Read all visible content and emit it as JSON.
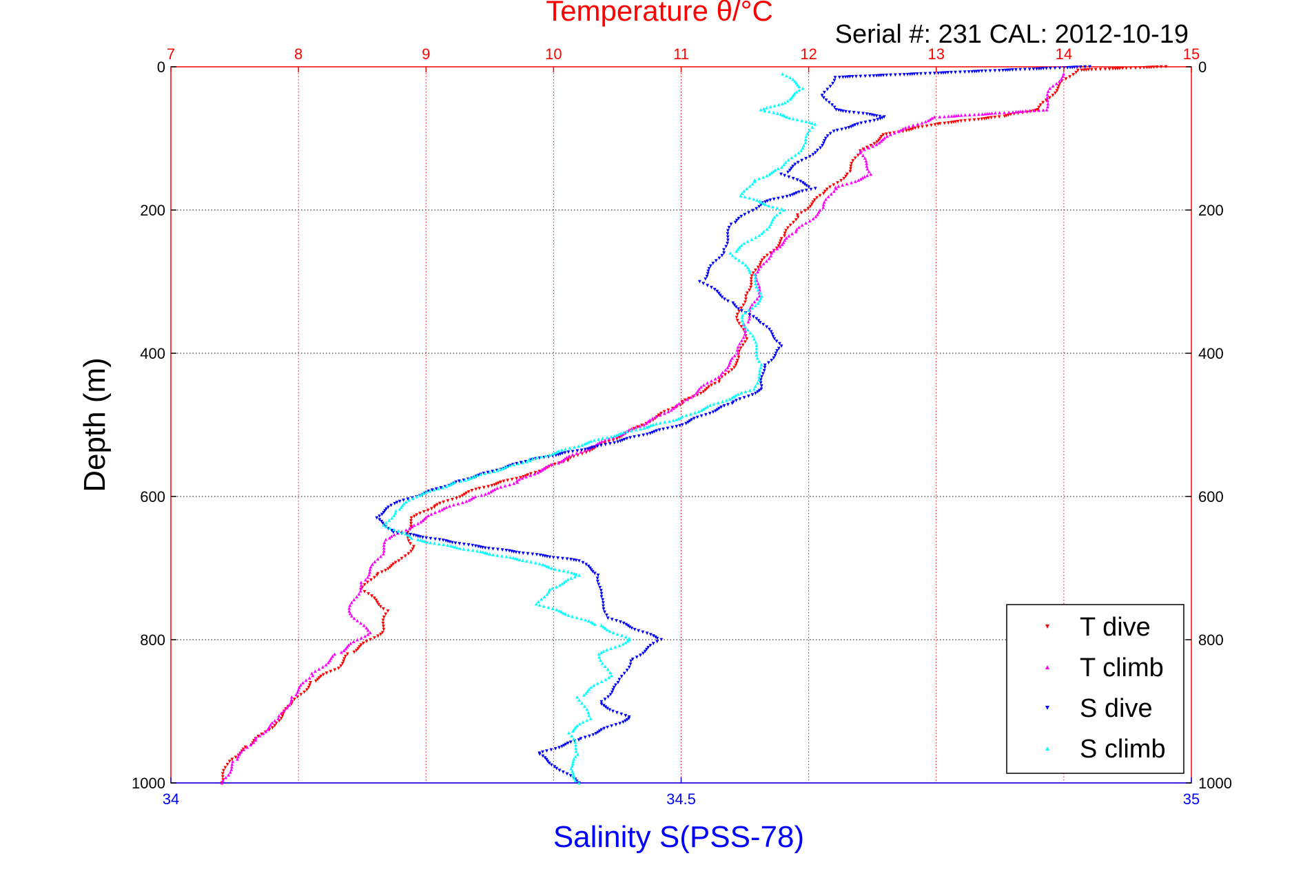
{
  "chart_data": {
    "type": "scatter",
    "title": "Temperature θ/°C",
    "subtitle": "Serial #: 231  CAL: 2012-10-19",
    "ylabel": "Depth (m)",
    "xlabel": "Salinity S(PSS-78)",
    "ylim": [
      0,
      1000
    ],
    "y_inverted": true,
    "y_ticks": [
      "0",
      "200",
      "400",
      "600",
      "800",
      "1000"
    ],
    "temperature_axis": {
      "range": [
        7,
        15
      ],
      "ticks": [
        "7",
        "8",
        "9",
        "10",
        "11",
        "12",
        "13",
        "14",
        "15"
      ],
      "color": "#ff0000",
      "position": "top"
    },
    "salinity_axis": {
      "range": [
        34,
        35
      ],
      "ticks": [
        "34",
        "34.5",
        "35"
      ],
      "color": "#0000ff",
      "position": "bottom"
    },
    "grid": true,
    "legend_position": "bottom-right",
    "series": [
      {
        "name": "T dive",
        "axis": "temperature",
        "color": "#ff0000",
        "marker": "triangle-down",
        "points": [
          [
            14.8,
            0
          ],
          [
            14.1,
            5
          ],
          [
            14.0,
            20
          ],
          [
            13.9,
            40
          ],
          [
            13.8,
            60
          ],
          [
            13.5,
            70
          ],
          [
            13.0,
            80
          ],
          [
            12.6,
            95
          ],
          [
            12.4,
            120
          ],
          [
            12.3,
            150
          ],
          [
            12.1,
            180
          ],
          [
            11.9,
            210
          ],
          [
            11.8,
            240
          ],
          [
            11.6,
            280
          ],
          [
            11.5,
            320
          ],
          [
            11.45,
            350
          ],
          [
            11.5,
            380
          ],
          [
            11.45,
            410
          ],
          [
            11.3,
            440
          ],
          [
            11.0,
            470
          ],
          [
            10.6,
            510
          ],
          [
            10.1,
            550
          ],
          [
            9.8,
            570
          ],
          [
            9.4,
            590
          ],
          [
            9.05,
            615
          ],
          [
            8.9,
            630
          ],
          [
            8.85,
            650
          ],
          [
            8.9,
            670
          ],
          [
            8.8,
            690
          ],
          [
            8.6,
            710
          ],
          [
            8.5,
            730
          ],
          [
            8.7,
            760
          ],
          [
            8.65,
            790
          ],
          [
            8.4,
            820
          ],
          [
            8.3,
            840
          ],
          [
            8.1,
            860
          ],
          [
            7.95,
            890
          ],
          [
            7.8,
            920
          ],
          [
            7.6,
            950
          ],
          [
            7.45,
            970
          ],
          [
            7.4,
            1000
          ]
        ]
      },
      {
        "name": "T climb",
        "axis": "temperature",
        "color": "#ff00ff",
        "marker": "triangle-up",
        "points": [
          [
            14.0,
            10
          ],
          [
            13.9,
            30
          ],
          [
            13.85,
            60
          ],
          [
            13.0,
            70
          ],
          [
            12.7,
            90
          ],
          [
            12.4,
            120
          ],
          [
            12.5,
            150
          ],
          [
            12.2,
            170
          ],
          [
            12.1,
            200
          ],
          [
            11.9,
            230
          ],
          [
            11.7,
            260
          ],
          [
            11.6,
            290
          ],
          [
            11.6,
            320
          ],
          [
            11.5,
            360
          ],
          [
            11.45,
            400
          ],
          [
            11.3,
            430
          ],
          [
            11.0,
            470
          ],
          [
            10.7,
            500
          ],
          [
            10.3,
            530
          ],
          [
            10.0,
            555
          ],
          [
            9.7,
            580
          ],
          [
            9.4,
            600
          ],
          [
            9.1,
            620
          ],
          [
            8.9,
            640
          ],
          [
            8.7,
            660
          ],
          [
            8.65,
            680
          ],
          [
            8.5,
            720
          ],
          [
            8.4,
            760
          ],
          [
            8.55,
            790
          ],
          [
            8.3,
            820
          ],
          [
            8.1,
            850
          ],
          [
            7.95,
            880
          ],
          [
            7.85,
            910
          ],
          [
            7.65,
            940
          ],
          [
            7.5,
            970
          ],
          [
            7.4,
            1000
          ]
        ]
      },
      {
        "name": "S dive",
        "axis": "salinity",
        "color": "#0000ff",
        "marker": "triangle-down",
        "points": [
          [
            34.9,
            0
          ],
          [
            34.65,
            15
          ],
          [
            34.64,
            40
          ],
          [
            34.65,
            60
          ],
          [
            34.7,
            70
          ],
          [
            34.65,
            90
          ],
          [
            34.63,
            120
          ],
          [
            34.6,
            150
          ],
          [
            34.63,
            170
          ],
          [
            34.58,
            190
          ],
          [
            34.55,
            220
          ],
          [
            34.54,
            260
          ],
          [
            34.52,
            300
          ],
          [
            34.55,
            330
          ],
          [
            34.58,
            360
          ],
          [
            34.6,
            390
          ],
          [
            34.58,
            420
          ],
          [
            34.58,
            450
          ],
          [
            34.55,
            470
          ],
          [
            34.5,
            500
          ],
          [
            34.42,
            530
          ],
          [
            34.35,
            550
          ],
          [
            34.28,
            580
          ],
          [
            34.22,
            610
          ],
          [
            34.2,
            630
          ],
          [
            34.22,
            650
          ],
          [
            34.3,
            670
          ],
          [
            34.4,
            690
          ],
          [
            34.42,
            710
          ],
          [
            34.42,
            740
          ],
          [
            34.43,
            770
          ],
          [
            34.48,
            800
          ],
          [
            34.45,
            830
          ],
          [
            34.44,
            860
          ],
          [
            34.42,
            890
          ],
          [
            34.45,
            910
          ],
          [
            34.4,
            940
          ],
          [
            34.36,
            960
          ],
          [
            34.38,
            980
          ],
          [
            34.4,
            1000
          ]
        ]
      },
      {
        "name": "S climb",
        "axis": "salinity",
        "color": "#00ffff",
        "marker": "triangle-up",
        "points": [
          [
            34.6,
            10
          ],
          [
            34.62,
            30
          ],
          [
            34.6,
            50
          ],
          [
            34.58,
            60
          ],
          [
            34.63,
            80
          ],
          [
            34.62,
            110
          ],
          [
            34.6,
            140
          ],
          [
            34.57,
            160
          ],
          [
            34.56,
            180
          ],
          [
            34.6,
            200
          ],
          [
            34.58,
            230
          ],
          [
            34.55,
            260
          ],
          [
            34.57,
            290
          ],
          [
            34.58,
            320
          ],
          [
            34.56,
            350
          ],
          [
            34.57,
            380
          ],
          [
            34.58,
            420
          ],
          [
            34.57,
            450
          ],
          [
            34.5,
            490
          ],
          [
            34.42,
            520
          ],
          [
            34.35,
            550
          ],
          [
            34.28,
            580
          ],
          [
            34.24,
            600
          ],
          [
            34.22,
            620
          ],
          [
            34.21,
            640
          ],
          [
            34.24,
            660
          ],
          [
            34.35,
            690
          ],
          [
            34.4,
            710
          ],
          [
            34.37,
            730
          ],
          [
            34.36,
            750
          ],
          [
            34.42,
            780
          ],
          [
            34.45,
            800
          ],
          [
            34.42,
            820
          ],
          [
            34.43,
            850
          ],
          [
            34.4,
            880
          ],
          [
            34.41,
            910
          ],
          [
            34.39,
            930
          ],
          [
            34.4,
            960
          ],
          [
            34.39,
            980
          ],
          [
            34.4,
            1000
          ]
        ]
      }
    ]
  }
}
